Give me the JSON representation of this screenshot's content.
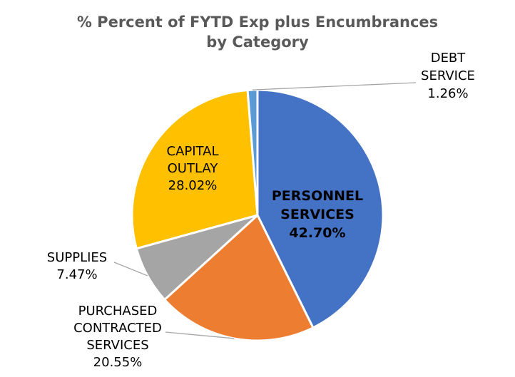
{
  "chart_data": {
    "type": "pie",
    "title_lines": [
      "% Percent of FYTD Exp plus Encumbrances",
      "by Category"
    ],
    "categories": [
      "PERSONNEL SERVICES",
      "PURCHASED CONTRACTED SERVICES",
      "SUPPLIES",
      "CAPITAL OUTLAY",
      "DEBT SERVICE"
    ],
    "values": [
      42.7,
      20.55,
      7.47,
      28.02,
      1.26
    ],
    "unit": "%",
    "colors": [
      "#4472C4",
      "#ED7D31",
      "#A5A5A5",
      "#FFC000",
      "#5B9BD5"
    ],
    "start_angle_deg": 0,
    "direction": "clockwise",
    "slices": [
      {
        "name": "PERSONNEL SERVICES",
        "label_lines": [
          "PERSONNEL",
          "SERVICES",
          "42.70%"
        ],
        "value": 42.7,
        "color": "#4472C4",
        "label_emphasis": "bold"
      },
      {
        "name": "PURCHASED CONTRACTED SERVICES",
        "label_lines": [
          "PURCHASED",
          "CONTRACTED",
          "SERVICES",
          "20.55%"
        ],
        "value": 20.55,
        "color": "#ED7D31"
      },
      {
        "name": "SUPPLIES",
        "label_lines": [
          "SUPPLIES",
          "7.47%"
        ],
        "value": 7.47,
        "color": "#A5A5A5"
      },
      {
        "name": "CAPITAL OUTLAY",
        "label_lines": [
          "CAPITAL",
          "OUTLAY",
          "28.02%"
        ],
        "value": 28.02,
        "color": "#FFC000"
      },
      {
        "name": "DEBT SERVICE",
        "label_lines": [
          "DEBT",
          "SERVICE",
          "1.26%"
        ],
        "value": 1.26,
        "color": "#5B9BD5"
      }
    ]
  }
}
